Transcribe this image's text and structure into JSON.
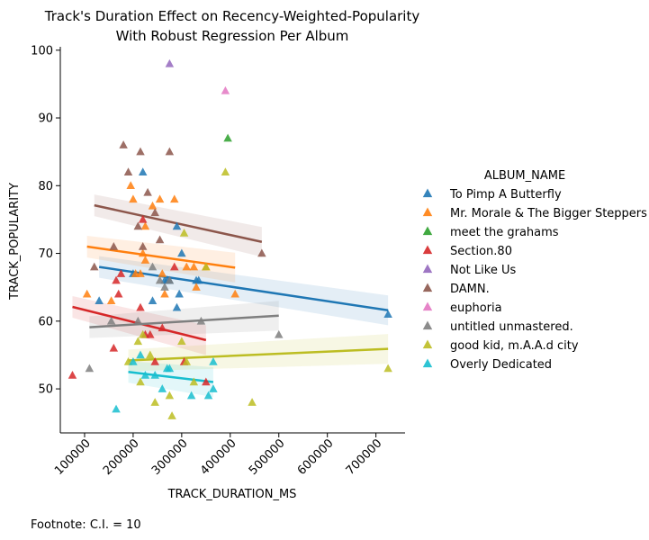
{
  "chart_data": {
    "type": "scatter",
    "title_lines": [
      "Track's Duration Effect on Recency-Weighted-Popularity",
      "With Robust Regression Per Album"
    ],
    "xlabel": "TRACK_DURATION_MS",
    "ylabel": "TRACK_POPULARITY",
    "xlim": [
      50000,
      760000
    ],
    "ylim": [
      43.5,
      100.5
    ],
    "xticks": [
      100000,
      200000,
      300000,
      400000,
      500000,
      600000,
      700000
    ],
    "yticks": [
      50,
      60,
      70,
      80,
      90,
      100
    ],
    "legend_title": "ALBUM_NAME",
    "legend_position": "right",
    "marker": "triangle",
    "footnote": "Footnote: C.I. = 10",
    "series": [
      {
        "name": "To Pimp A Butterfly",
        "color": "#1f77b4",
        "points": [
          [
            130000,
            63
          ],
          [
            200000,
            67
          ],
          [
            220000,
            82
          ],
          [
            240000,
            63
          ],
          [
            265000,
            66
          ],
          [
            270000,
            66
          ],
          [
            275000,
            66
          ],
          [
            290000,
            62
          ],
          [
            290000,
            74
          ],
          [
            295000,
            64
          ],
          [
            300000,
            70
          ],
          [
            330000,
            66
          ],
          [
            335000,
            66
          ],
          [
            725000,
            61
          ]
        ],
        "fit": [
          [
            130000,
            68
          ],
          [
            725000,
            61.6
          ]
        ]
      },
      {
        "name": "Mr. Morale & The Bigger Steppers",
        "color": "#ff7f0e",
        "points": [
          [
            105000,
            64
          ],
          [
            155000,
            63
          ],
          [
            195000,
            80
          ],
          [
            200000,
            78
          ],
          [
            205000,
            67
          ],
          [
            215000,
            67
          ],
          [
            220000,
            70
          ],
          [
            225000,
            69
          ],
          [
            225000,
            74
          ],
          [
            240000,
            77
          ],
          [
            255000,
            78
          ],
          [
            260000,
            67
          ],
          [
            265000,
            64
          ],
          [
            285000,
            78
          ],
          [
            310000,
            68
          ],
          [
            325000,
            68
          ],
          [
            330000,
            65
          ],
          [
            350000,
            68
          ],
          [
            410000,
            64
          ]
        ],
        "fit": [
          [
            105000,
            71
          ],
          [
            410000,
            67.9
          ]
        ]
      },
      {
        "name": "meet the grahams",
        "color": "#2ca02c",
        "points": [
          [
            395000,
            87
          ]
        ],
        "fit": []
      },
      {
        "name": "Section.80",
        "color": "#d62728",
        "points": [
          [
            75000,
            52
          ],
          [
            160000,
            56
          ],
          [
            165000,
            66
          ],
          [
            170000,
            64
          ],
          [
            175000,
            67
          ],
          [
            215000,
            62
          ],
          [
            220000,
            75
          ],
          [
            225000,
            58
          ],
          [
            235000,
            58
          ],
          [
            245000,
            54
          ],
          [
            260000,
            59
          ],
          [
            285000,
            68
          ],
          [
            305000,
            54
          ],
          [
            350000,
            51
          ]
        ],
        "fit": [
          [
            75000,
            62.1
          ],
          [
            350000,
            57.2
          ]
        ]
      },
      {
        "name": "Not Like Us",
        "color": "#9467bd",
        "points": [
          [
            275000,
            98
          ]
        ],
        "fit": []
      },
      {
        "name": "DAMN.",
        "color": "#8c564b",
        "points": [
          [
            120000,
            68
          ],
          [
            160000,
            71
          ],
          [
            180000,
            86
          ],
          [
            190000,
            82
          ],
          [
            210000,
            74
          ],
          [
            215000,
            85
          ],
          [
            220000,
            71
          ],
          [
            230000,
            79
          ],
          [
            245000,
            76
          ],
          [
            255000,
            72
          ],
          [
            275000,
            85
          ],
          [
            465000,
            70
          ]
        ],
        "fit": [
          [
            120000,
            77.1
          ],
          [
            465000,
            71.7
          ]
        ]
      },
      {
        "name": "euphoria",
        "color": "#e377c2",
        "points": [
          [
            390000,
            94
          ]
        ],
        "fit": []
      },
      {
        "name": "untitled unmastered.",
        "color": "#7f7f7f",
        "points": [
          [
            110000,
            53
          ],
          [
            155000,
            60
          ],
          [
            210000,
            60
          ],
          [
            240000,
            68
          ],
          [
            255000,
            66
          ],
          [
            265000,
            65
          ],
          [
            275000,
            66
          ],
          [
            340000,
            60
          ],
          [
            500000,
            58
          ]
        ],
        "fit": [
          [
            110000,
            59.1
          ],
          [
            500000,
            60.8
          ]
        ]
      },
      {
        "name": "good kid, m.A.A.d city",
        "color": "#bcbd22",
        "points": [
          [
            190000,
            54
          ],
          [
            210000,
            57
          ],
          [
            215000,
            51
          ],
          [
            220000,
            58
          ],
          [
            235000,
            55
          ],
          [
            245000,
            48
          ],
          [
            275000,
            49
          ],
          [
            280000,
            46
          ],
          [
            300000,
            57
          ],
          [
            305000,
            73
          ],
          [
            310000,
            54
          ],
          [
            325000,
            51
          ],
          [
            350000,
            68
          ],
          [
            390000,
            82
          ],
          [
            445000,
            48
          ],
          [
            725000,
            53
          ]
        ],
        "fit": [
          [
            190000,
            54.2
          ],
          [
            725000,
            55.9
          ]
        ]
      },
      {
        "name": "Overly Dedicated",
        "color": "#17becf",
        "points": [
          [
            165000,
            47
          ],
          [
            200000,
            54
          ],
          [
            215000,
            55
          ],
          [
            225000,
            52
          ],
          [
            245000,
            52
          ],
          [
            260000,
            50
          ],
          [
            270000,
            53
          ],
          [
            275000,
            53
          ],
          [
            320000,
            49
          ],
          [
            355000,
            49
          ],
          [
            365000,
            50
          ],
          [
            365000,
            54
          ]
        ],
        "fit": [
          [
            190000,
            52.5
          ],
          [
            365000,
            51
          ]
        ]
      }
    ]
  }
}
